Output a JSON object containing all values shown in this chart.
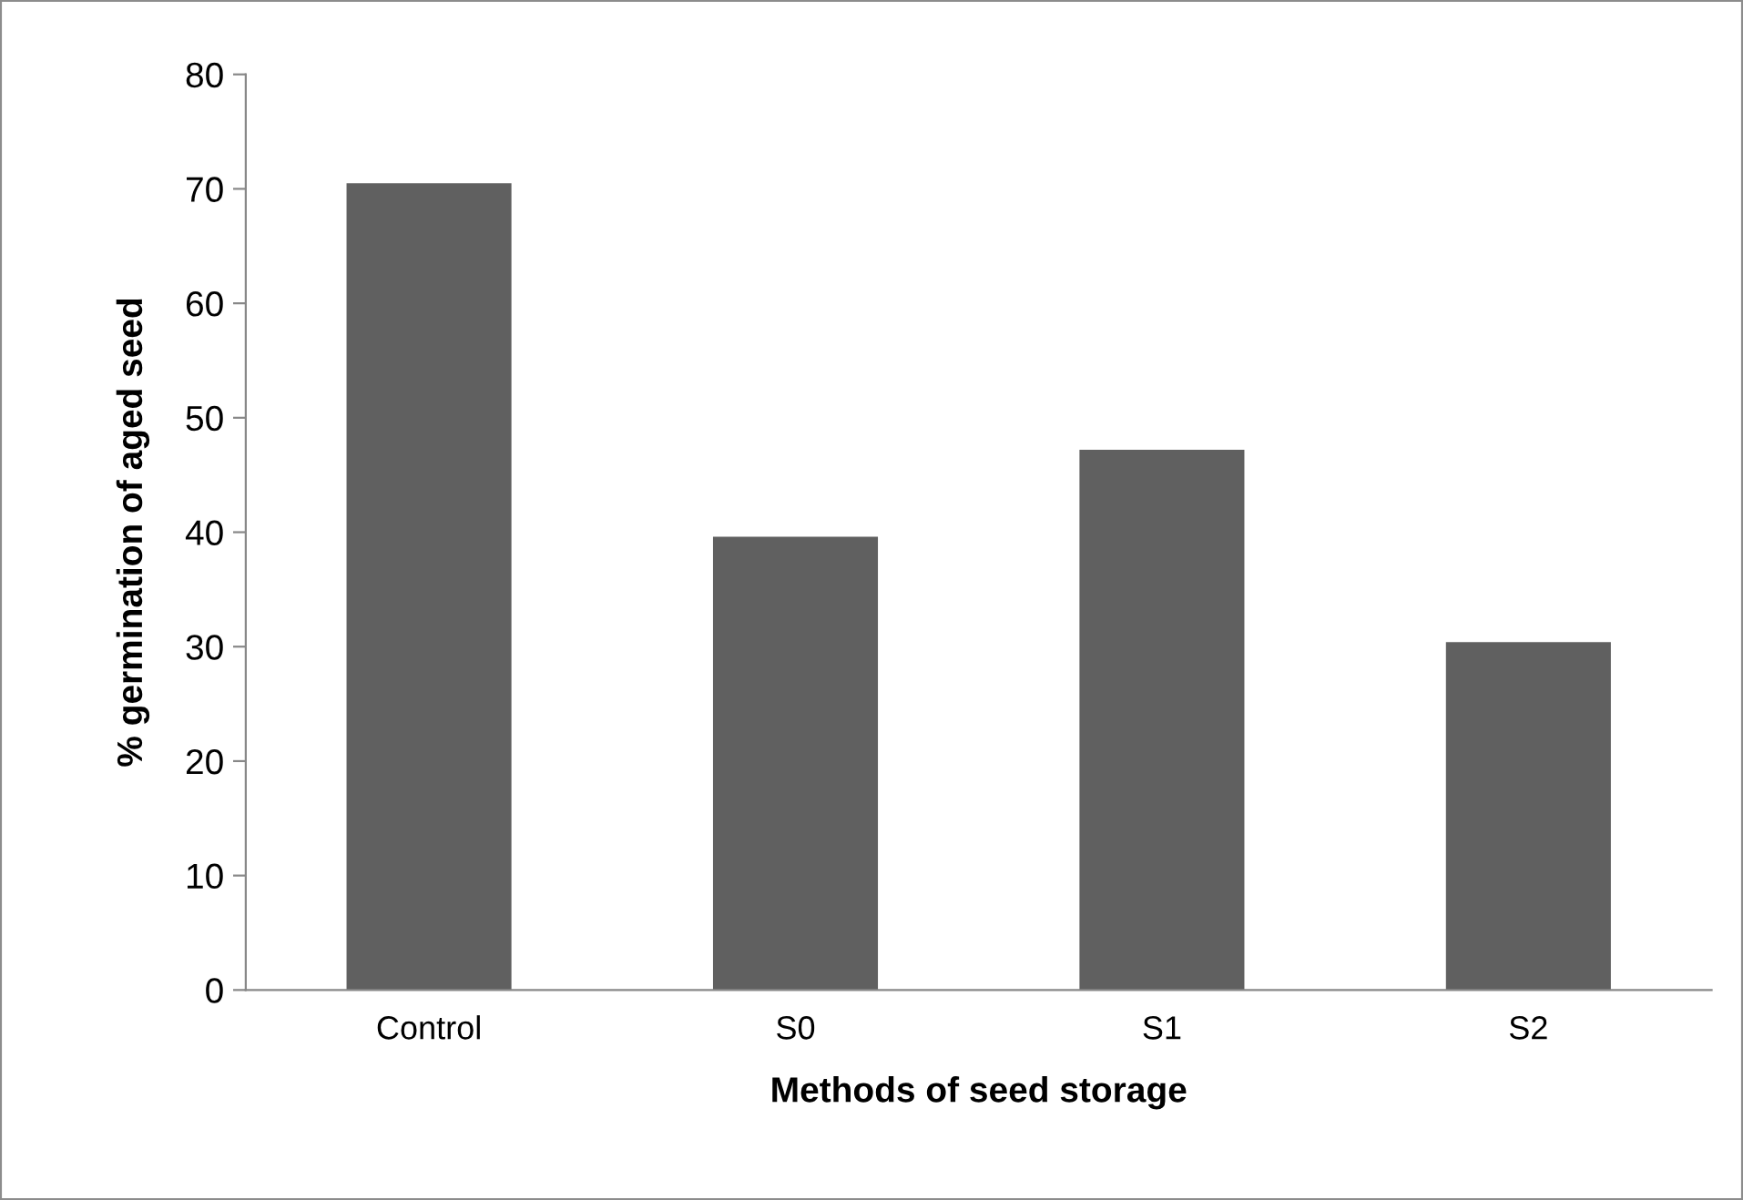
{
  "chart_data": {
    "type": "bar",
    "xlabel": "Methods of seed storage",
    "ylabel": "% germination of aged seed",
    "categories": [
      "Control",
      "S0",
      "S1",
      "S2"
    ],
    "values": [
      70.5,
      39.6,
      47.2,
      30.4
    ],
    "color": "#606060",
    "ylim": [
      0,
      80
    ],
    "yticks": [
      0,
      10,
      20,
      30,
      40,
      50,
      60,
      70,
      80
    ],
    "grid": false,
    "legend": false
  }
}
